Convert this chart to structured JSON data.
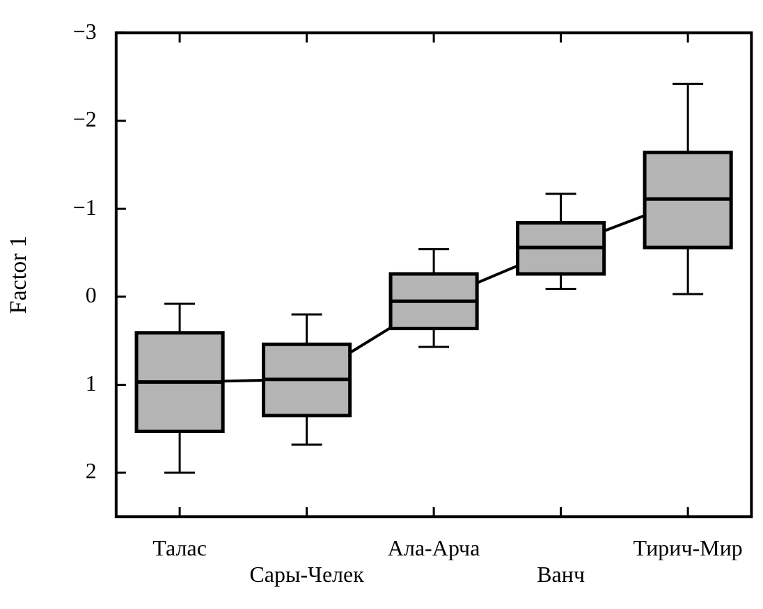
{
  "chart_data": {
    "type": "box",
    "ylabel": "Factor 1",
    "categories": [
      "Талас",
      "Сары-Челек",
      "Ала-Арча",
      "Ванч",
      "Тирич-Мир"
    ],
    "boxes": [
      {
        "low": 0.08,
        "q1": 0.41,
        "median": 0.97,
        "q3": 1.53,
        "high": 2.0
      },
      {
        "low": 0.2,
        "q1": 0.54,
        "median": 0.94,
        "q3": 1.35,
        "high": 1.68
      },
      {
        "low": -0.54,
        "q1": -0.26,
        "median": 0.05,
        "q3": 0.36,
        "high": 0.57
      },
      {
        "low": -1.17,
        "q1": -0.84,
        "median": -0.56,
        "q3": -0.26,
        "high": -0.09
      },
      {
        "low": -2.42,
        "q1": -1.64,
        "median": -1.11,
        "q3": -0.56,
        "high": -0.03
      }
    ],
    "series": [
      {
        "type": "line",
        "color": "#000000",
        "values": [
          0.97,
          0.94,
          0.05,
          -0.56,
          -1.11
        ]
      }
    ],
    "ylim": [
      2.5,
      -3
    ],
    "yticks": [
      -3,
      -2,
      -1,
      0,
      1,
      2
    ],
    "grid": false,
    "legend": false
  }
}
